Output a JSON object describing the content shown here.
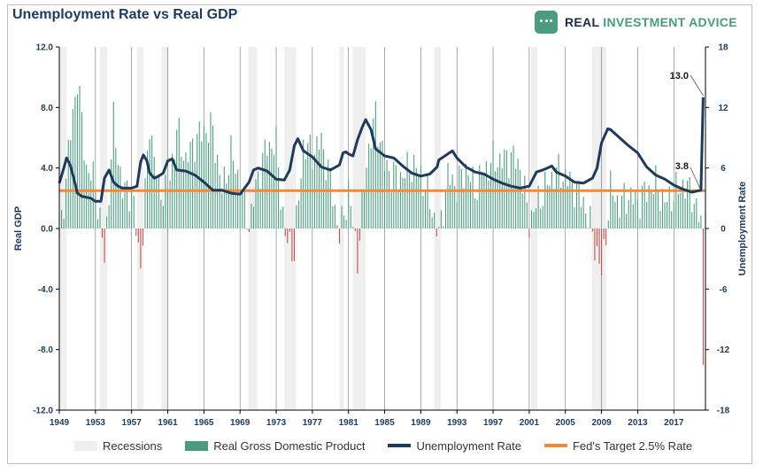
{
  "title": "Unemployment Rate vs Real GDP",
  "brand": {
    "name_part1": "REAL ",
    "name_part2": "INVESTMENT ADVICE",
    "icon": "chart-icon"
  },
  "colors": {
    "recession": "#efefef",
    "gdp_positive": "#4b9b80",
    "gdp_negative": "#c0504d",
    "unemployment": "#1f3a5a",
    "fed_target": "#f08a3c",
    "grid": "#000000"
  },
  "chart_data": {
    "type": "bar+line",
    "title": "Unemployment Rate vs Real GDP",
    "x_tick_labels": [
      "1949",
      "1953",
      "1957",
      "1961",
      "1965",
      "1969",
      "1973",
      "1977",
      "1981",
      "1985",
      "1989",
      "1993",
      "1997",
      "2001",
      "2005",
      "2009",
      "2013",
      "2017"
    ],
    "xlim": [
      1949,
      2020.5
    ],
    "left_axis": {
      "label": "Real GDP",
      "ylim": [
        -12,
        12
      ],
      "ticks": [
        "12.0",
        "8.0",
        "4.0",
        "0.0",
        "-4.0",
        "-8.0",
        "-12.0"
      ]
    },
    "right_axis": {
      "label": "Unemployment Rate",
      "ylim": [
        -18,
        18
      ],
      "ticks": [
        "18",
        "12",
        "6",
        "0",
        "-6",
        "-12",
        "-18"
      ]
    },
    "recessions": [
      [
        1949.0,
        1949.8
      ],
      [
        1953.5,
        1954.3
      ],
      [
        1957.6,
        1958.3
      ],
      [
        1960.3,
        1961.1
      ],
      [
        1969.9,
        1970.9
      ],
      [
        1973.9,
        1975.2
      ],
      [
        1980.0,
        1980.5
      ],
      [
        1981.5,
        1982.9
      ],
      [
        1990.5,
        1991.2
      ],
      [
        2001.2,
        2001.9
      ],
      [
        2007.9,
        2009.5
      ]
    ],
    "gdp_anchors": [
      [
        1949,
        -1.2
      ],
      [
        1950,
        5
      ],
      [
        1951,
        10
      ],
      [
        1952,
        4
      ],
      [
        1953,
        3
      ],
      [
        1954,
        -2
      ],
      [
        1955,
        7
      ],
      [
        1956,
        2.5
      ],
      [
        1957,
        2.5
      ],
      [
        1958,
        -2.5
      ],
      [
        1959,
        7
      ],
      [
        1960,
        2.5
      ],
      [
        1961,
        2.5
      ],
      [
        1962,
        6.5
      ],
      [
        1963,
        4.5
      ],
      [
        1964,
        5.8
      ],
      [
        1965,
        6.5
      ],
      [
        1966,
        6.5
      ],
      [
        1967,
        2.5
      ],
      [
        1968,
        5
      ],
      [
        1969,
        3
      ],
      [
        1970,
        0.2
      ],
      [
        1971,
        3.5
      ],
      [
        1972,
        5.5
      ],
      [
        1973,
        5.5
      ],
      [
        1974,
        -0.6
      ],
      [
        1975,
        -1.5
      ],
      [
        1976,
        5.5
      ],
      [
        1977,
        5
      ],
      [
        1978,
        5.8
      ],
      [
        1979,
        3.2
      ],
      [
        1980,
        -0.5
      ],
      [
        1981,
        2.5
      ],
      [
        1982,
        -2
      ],
      [
        1983,
        4.5
      ],
      [
        1984,
        7.5
      ],
      [
        1985,
        4.2
      ],
      [
        1986,
        3.5
      ],
      [
        1987,
        3.5
      ],
      [
        1988,
        4.2
      ],
      [
        1989,
        3.6
      ],
      [
        1990,
        1.8
      ],
      [
        1991,
        -0.5
      ],
      [
        1992,
        3.5
      ],
      [
        1993,
        2.8
      ],
      [
        1994,
        4
      ],
      [
        1995,
        2.6
      ],
      [
        1996,
        3.8
      ],
      [
        1997,
        4.5
      ],
      [
        1998,
        4.5
      ],
      [
        1999,
        4.8
      ],
      [
        2000,
        4.1
      ],
      [
        2001,
        0.5
      ],
      [
        2002,
        1.8
      ],
      [
        2003,
        2.9
      ],
      [
        2004,
        3.8
      ],
      [
        2005,
        3.4
      ],
      [
        2006,
        2.8
      ],
      [
        2007,
        1.8
      ],
      [
        2008,
        -0.3
      ],
      [
        2009,
        -3
      ],
      [
        2010,
        2.6
      ],
      [
        2011,
        1.6
      ],
      [
        2012,
        2.2
      ],
      [
        2013,
        1.8
      ],
      [
        2014,
        2.5
      ],
      [
        2015,
        2.9
      ],
      [
        2016,
        1.7
      ],
      [
        2017,
        2.3
      ],
      [
        2018,
        2.9
      ],
      [
        2019,
        2.3
      ],
      [
        2020,
        0.3
      ],
      [
        2020.25,
        -9
      ]
    ],
    "unemployment_series": {
      "name": "Unemployment Rate",
      "points": [
        [
          1949,
          4.5
        ],
        [
          1949.5,
          6
        ],
        [
          1949.8,
          7
        ],
        [
          1950.2,
          6.3
        ],
        [
          1950.6,
          5
        ],
        [
          1951,
          3.5
        ],
        [
          1951.5,
          3.2
        ],
        [
          1952,
          3.1
        ],
        [
          1952.5,
          3
        ],
        [
          1953,
          2.7
        ],
        [
          1953.6,
          2.7
        ],
        [
          1954,
          5
        ],
        [
          1954.5,
          5.8
        ],
        [
          1955,
          4.6
        ],
        [
          1955.5,
          4.2
        ],
        [
          1956,
          4
        ],
        [
          1957,
          4
        ],
        [
          1957.6,
          4.2
        ],
        [
          1958,
          6.6
        ],
        [
          1958.3,
          7.3
        ],
        [
          1958.7,
          6.7
        ],
        [
          1959,
          5.5
        ],
        [
          1959.5,
          5
        ],
        [
          1960,
          5.2
        ],
        [
          1960.5,
          5.5
        ],
        [
          1961,
          6.7
        ],
        [
          1961.5,
          6.9
        ],
        [
          1962,
          5.8
        ],
        [
          1963,
          5.7
        ],
        [
          1964,
          5.3
        ],
        [
          1965,
          4.6
        ],
        [
          1966,
          3.8
        ],
        [
          1967,
          3.8
        ],
        [
          1968,
          3.5
        ],
        [
          1969,
          3.4
        ],
        [
          1970,
          4.6
        ],
        [
          1970.5,
          5.8
        ],
        [
          1971,
          6
        ],
        [
          1972,
          5.7
        ],
        [
          1973,
          4.9
        ],
        [
          1973.9,
          4.8
        ],
        [
          1974.5,
          5.8
        ],
        [
          1975,
          8.2
        ],
        [
          1975.4,
          8.9
        ],
        [
          1976,
          7.7
        ],
        [
          1977,
          7.1
        ],
        [
          1978,
          6.1
        ],
        [
          1979,
          5.8
        ],
        [
          1980,
          6.3
        ],
        [
          1980.4,
          7.5
        ],
        [
          1980.7,
          7.6
        ],
        [
          1981,
          7.4
        ],
        [
          1981.5,
          7.2
        ],
        [
          1982,
          8.8
        ],
        [
          1982.5,
          10
        ],
        [
          1982.9,
          10.8
        ],
        [
          1983.5,
          9.8
        ],
        [
          1984,
          7.9
        ],
        [
          1985,
          7.2
        ],
        [
          1986,
          7
        ],
        [
          1987,
          6.2
        ],
        [
          1988,
          5.5
        ],
        [
          1989,
          5.2
        ],
        [
          1990,
          5.4
        ],
        [
          1990.8,
          6.1
        ],
        [
          1991,
          6.8
        ],
        [
          1992,
          7.4
        ],
        [
          1992.5,
          7.7
        ],
        [
          1993,
          7
        ],
        [
          1994,
          6.1
        ],
        [
          1995,
          5.6
        ],
        [
          1996,
          5.4
        ],
        [
          1997,
          4.9
        ],
        [
          1998,
          4.5
        ],
        [
          1999,
          4.2
        ],
        [
          2000,
          4
        ],
        [
          2001,
          4.2
        ],
        [
          2001.8,
          5.6
        ],
        [
          2002.5,
          5.8
        ],
        [
          2003,
          6
        ],
        [
          2003.5,
          6.2
        ],
        [
          2004,
          5.6
        ],
        [
          2005,
          5.2
        ],
        [
          2006,
          4.6
        ],
        [
          2007,
          4.5
        ],
        [
          2008,
          5
        ],
        [
          2008.5,
          6
        ],
        [
          2009,
          8.5
        ],
        [
          2009.7,
          9.9
        ],
        [
          2010,
          9.8
        ],
        [
          2011,
          9
        ],
        [
          2012,
          8.2
        ],
        [
          2013,
          7.5
        ],
        [
          2014,
          6.1
        ],
        [
          2015,
          5.3
        ],
        [
          2016,
          4.9
        ],
        [
          2017,
          4.3
        ],
        [
          2018,
          3.9
        ],
        [
          2019,
          3.6
        ],
        [
          2020,
          3.8
        ],
        [
          2020.25,
          13
        ]
      ]
    },
    "fed_target": {
      "name": "Fed's Target 2.5% Rate",
      "value": 2.5
    },
    "annotations": [
      "13.0",
      "3.8"
    ],
    "legend": [
      "Recessions",
      "Real Gross Domestic Product",
      "Unemployment Rate",
      "Fed's Target 2.5% Rate"
    ]
  },
  "legend": {
    "recessions": "Recessions",
    "gdp": "Real Gross Domestic Product",
    "unemployment": "Unemployment Rate",
    "fed": "Fed's Target 2.5% Rate"
  }
}
